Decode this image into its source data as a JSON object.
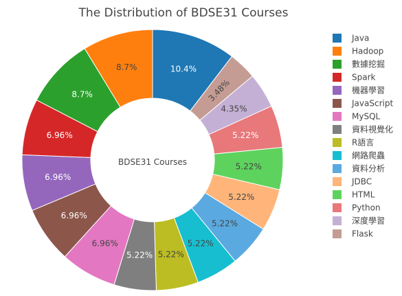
{
  "chart_data": {
    "type": "pie",
    "hole": true,
    "title": "The Distribution of BDSE31 Courses",
    "center_label": "BDSE31 Courses",
    "legend_position": "right",
    "slices": [
      {
        "label": "Java",
        "value": 10.4,
        "text": "10.4%",
        "color": "#1f77b4",
        "text_color": "#ffffff"
      },
      {
        "label": "Flask",
        "value": 3.48,
        "text": "3.48%",
        "color": "#c49c94",
        "text_color": "#444444"
      },
      {
        "label": "深度學習",
        "value": 4.35,
        "text": "4.35%",
        "color": "#c5b0d5",
        "text_color": "#444444"
      },
      {
        "label": "Python",
        "value": 5.22,
        "text": "5.22%",
        "color": "#e8787a",
        "text_color": "#ffffff"
      },
      {
        "label": "HTML",
        "value": 5.22,
        "text": "5.22%",
        "color": "#5dd35d",
        "text_color": "#444444"
      },
      {
        "label": "JDBC",
        "value": 5.22,
        "text": "5.22%",
        "color": "#ffb57a",
        "text_color": "#444444"
      },
      {
        "label": "資料分析",
        "value": 5.22,
        "text": "5.22%",
        "color": "#5aa9e0",
        "text_color": "#444444"
      },
      {
        "label": "網路爬蟲",
        "value": 5.22,
        "text": "5.22%",
        "color": "#17becf",
        "text_color": "#444444"
      },
      {
        "label": "R語言",
        "value": 5.22,
        "text": "5.22%",
        "color": "#bcbd22",
        "text_color": "#444444"
      },
      {
        "label": "資料視覺化",
        "value": 5.22,
        "text": "5.22%",
        "color": "#7f7f7f",
        "text_color": "#ffffff"
      },
      {
        "label": "MySQL",
        "value": 6.96,
        "text": "6.96%",
        "color": "#e377c2",
        "text_color": "#444444"
      },
      {
        "label": "JavaScript",
        "value": 6.96,
        "text": "6.96%",
        "color": "#8c564b",
        "text_color": "#ffffff"
      },
      {
        "label": "機器學習",
        "value": 6.96,
        "text": "6.96%",
        "color": "#9467bd",
        "text_color": "#ffffff"
      },
      {
        "label": "Spark",
        "value": 6.96,
        "text": "6.96%",
        "color": "#d62728",
        "text_color": "#ffffff"
      },
      {
        "label": "數據挖掘",
        "value": 8.7,
        "text": "8.7%",
        "color": "#2ca02c",
        "text_color": "#ffffff"
      },
      {
        "label": "Hadoop",
        "value": 8.7,
        "text": "8.7%",
        "color": "#ff7f0e",
        "text_color": "#444444"
      }
    ],
    "legend_order": [
      "Java",
      "Hadoop",
      "數據挖掘",
      "Spark",
      "機器學習",
      "JavaScript",
      "MySQL",
      "資料視覺化",
      "R語言",
      "網路爬蟲",
      "資料分析",
      "JDBC",
      "HTML",
      "Python",
      "深度學習",
      "Flask"
    ]
  }
}
